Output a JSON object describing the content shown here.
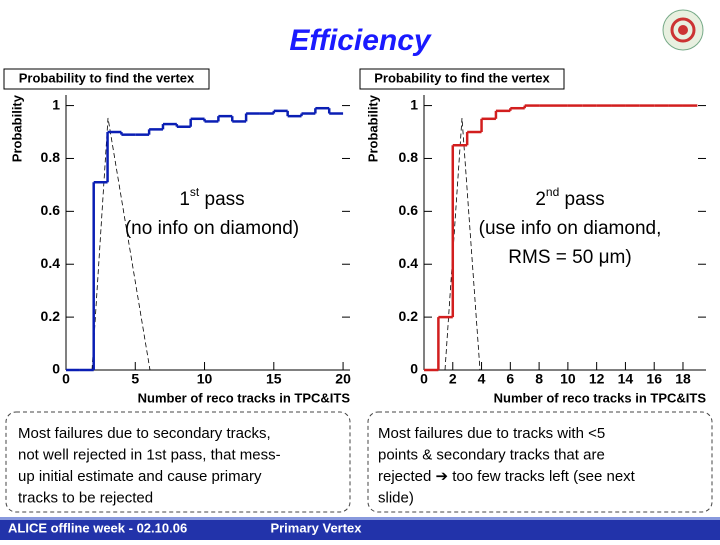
{
  "slide_title": "Efficiency",
  "chart_data": [
    {
      "type": "histogram",
      "title": "Probability to find the vertex",
      "x_label": "Number of reco tracks in TPC&ITS",
      "y_label": "Probability",
      "annotation": [
        [
          "1",
          "st",
          " pass"
        ],
        [
          "(no info on diamond)"
        ]
      ],
      "bins": [
        0,
        1,
        2,
        3,
        4,
        5,
        6,
        7,
        8,
        9,
        10,
        11,
        12,
        13,
        14,
        15,
        16,
        17,
        18,
        19,
        20
      ],
      "values": [
        0,
        0,
        0.71,
        0.9,
        0.89,
        0.89,
        0.91,
        0.93,
        0.92,
        0.95,
        0.94,
        0.96,
        0.94,
        0.97,
        0.97,
        0.98,
        0.96,
        0.97,
        0.99,
        0.97
      ],
      "color": "#0a1eb4",
      "xlim": [
        0,
        20.5
      ],
      "xticks": [
        0,
        5,
        10,
        15,
        20
      ],
      "ylim": [
        0,
        1.04
      ],
      "yticks": [
        0,
        0.2,
        0.4,
        0.6,
        0.8,
        1
      ]
    },
    {
      "type": "histogram",
      "title": "Probability to find the vertex",
      "x_label": "Number of reco tracks in TPC&ITS",
      "y_label": "Probability",
      "annotation": [
        [
          "2",
          "nd",
          " pass"
        ],
        [
          "(use info on diamond,"
        ],
        [
          "RMS = 50 μm)"
        ]
      ],
      "bins": [
        0,
        1,
        2,
        3,
        4,
        5,
        6,
        7,
        8,
        9,
        10,
        11,
        12,
        13,
        14,
        15,
        16,
        17,
        18,
        19
      ],
      "values": [
        0,
        0.2,
        0.85,
        0.9,
        0.95,
        0.98,
        0.99,
        1,
        1,
        1,
        1,
        1,
        1,
        1,
        1,
        1,
        1,
        1,
        1
      ],
      "color": "#d21e1e",
      "xlim": [
        0,
        19.6
      ],
      "xticks": [
        0,
        2,
        4,
        6,
        8,
        10,
        12,
        14,
        16,
        18
      ],
      "ylim": [
        0,
        1.04
      ],
      "yticks": [
        0,
        0.2,
        0.4,
        0.6,
        0.8,
        1
      ]
    }
  ],
  "notes": [
    [
      "Most failures due to secondary tracks,",
      "not well rejected in 1st pass, that mess-",
      "up initial estimate and cause primary",
      "tracks to be rejected"
    ],
    [
      "Most failures due to tracks with <5",
      "points & secondary tracks that are",
      "rejected ➔ too few tracks left (see next",
      "slide)"
    ]
  ],
  "footer": {
    "left": "ALICE offline week - 02.10.06",
    "center": "Primary Vertex"
  }
}
